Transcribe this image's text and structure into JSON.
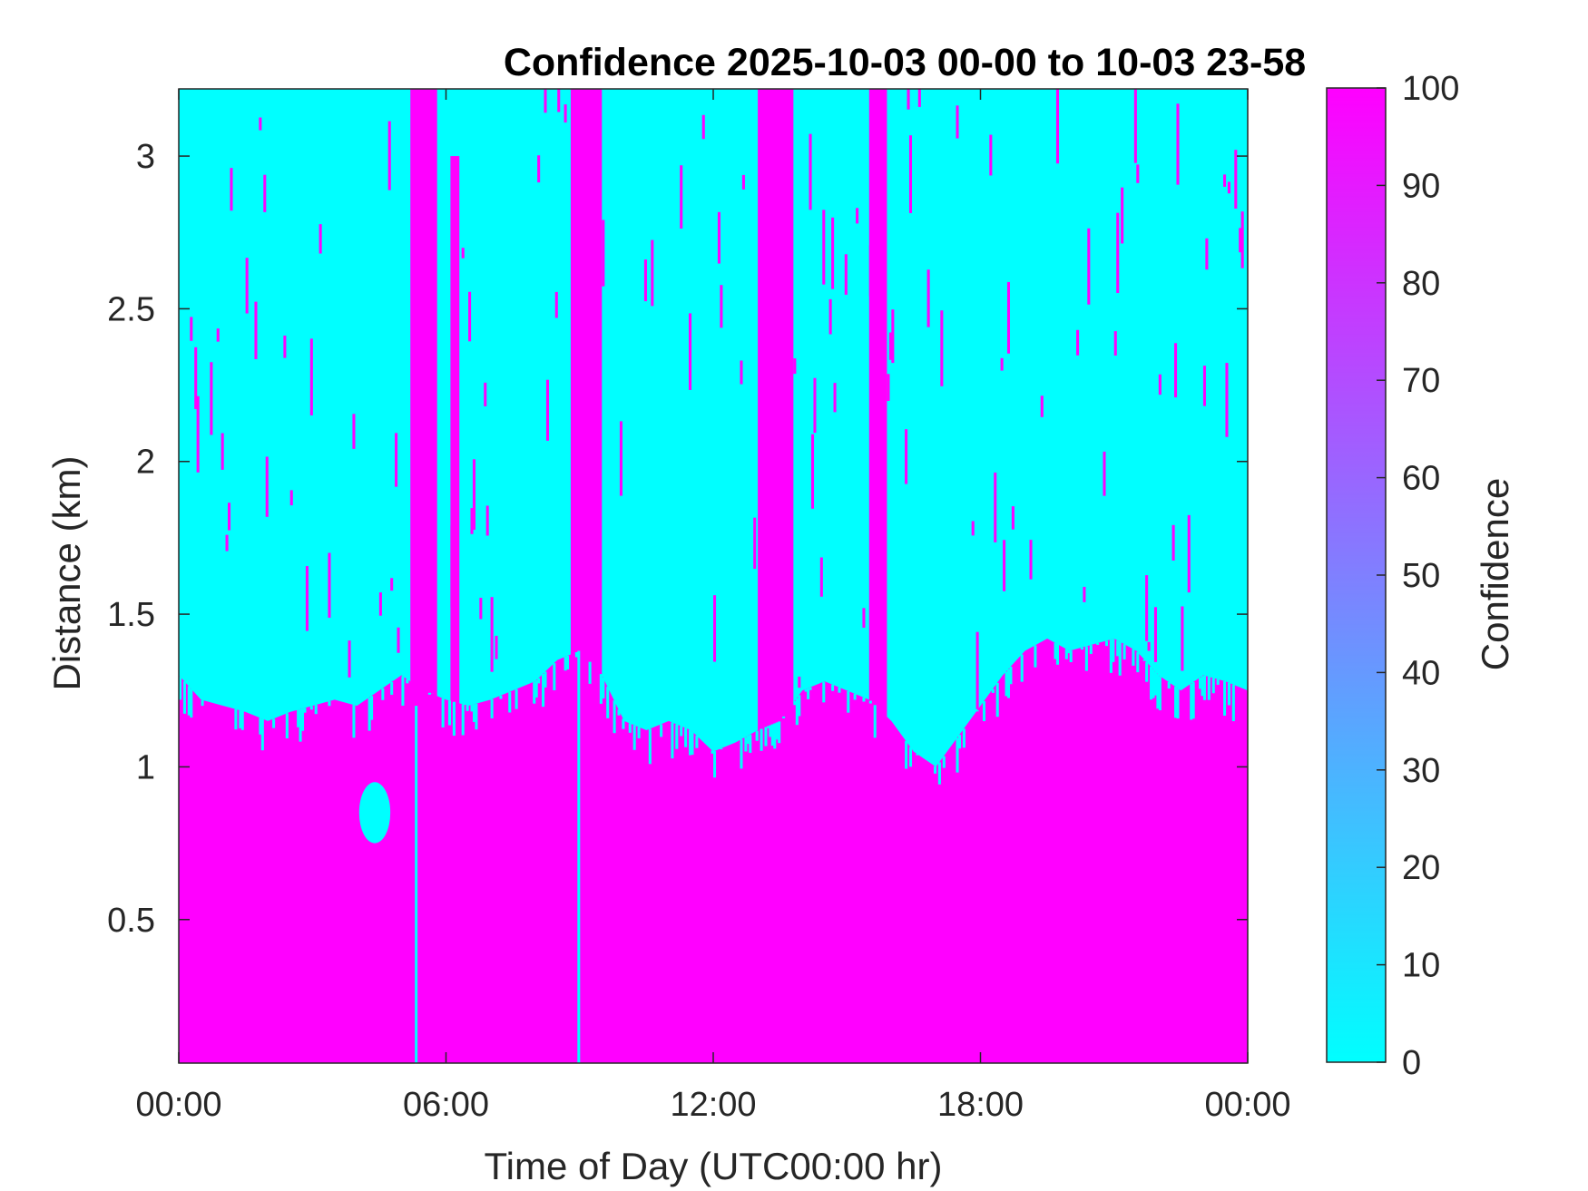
{
  "chart_data": {
    "type": "heatmap",
    "title": "Confidence 2025-10-03 00-00 to 10-03 23-58",
    "xlabel": "Time of Day (UTC00:00 hr)",
    "ylabel": "Distance (km)",
    "xlim": [
      0,
      24
    ],
    "ylim": [
      0.03,
      3.22
    ],
    "x_tick_labels": [
      "00:00",
      "06:00",
      "12:00",
      "18:00",
      "00:00"
    ],
    "x_ticks": [
      0,
      6,
      12,
      18,
      24
    ],
    "y_ticks": [
      0.5,
      1,
      1.5,
      2,
      2.5,
      3
    ],
    "y_tick_labels": [
      "0.5",
      "1",
      "1.5",
      "2",
      "2.5",
      "3"
    ],
    "colorbar": {
      "label": "Confidence",
      "range": [
        0,
        100
      ],
      "ticks": [
        0,
        10,
        20,
        30,
        40,
        50,
        60,
        70,
        80,
        90,
        100
      ],
      "tick_labels": [
        "0",
        "10",
        "20",
        "30",
        "40",
        "50",
        "60",
        "70",
        "80",
        "90",
        "100"
      ],
      "color_low": "#00ffff",
      "color_high": "#ff00ff"
    },
    "confidence_boundary": {
      "description_hours": [
        0,
        0.5,
        1,
        1.5,
        2,
        2.5,
        3,
        3.5,
        4,
        4.5,
        5,
        5.5,
        6,
        6.5,
        7,
        7.5,
        8,
        8.5,
        9,
        9.5,
        10,
        10.5,
        11,
        11.5,
        12,
        12.5,
        13,
        13.5,
        14,
        14.5,
        15,
        15.5,
        16,
        16.5,
        17,
        17.5,
        18,
        18.5,
        19,
        19.5,
        20,
        20.5,
        21,
        21.5,
        22,
        22.5,
        23,
        23.5,
        24
      ],
      "height_km": [
        1.3,
        1.22,
        1.2,
        1.18,
        1.15,
        1.18,
        1.2,
        1.22,
        1.2,
        1.25,
        1.3,
        1.25,
        1.22,
        1.2,
        1.22,
        1.25,
        1.28,
        1.35,
        1.38,
        1.3,
        1.15,
        1.12,
        1.15,
        1.12,
        1.05,
        1.08,
        1.12,
        1.15,
        1.25,
        1.28,
        1.25,
        1.22,
        1.15,
        1.05,
        1.0,
        1.1,
        1.2,
        1.3,
        1.38,
        1.42,
        1.38,
        1.4,
        1.42,
        1.38,
        1.3,
        1.25,
        1.3,
        1.28,
        1.25
      ]
    },
    "plume_columns": [
      {
        "x_from": 5.2,
        "x_to": 5.8,
        "y_top_km": 3.22
      },
      {
        "x_from": 6.1,
        "x_to": 6.3,
        "y_top_km": 3.0
      },
      {
        "x_from": 8.8,
        "x_to": 9.5,
        "y_top_km": 3.22
      },
      {
        "x_from": 13.0,
        "x_to": 13.8,
        "y_top_km": 3.22
      },
      {
        "x_from": 15.5,
        "x_to": 15.9,
        "y_top_km": 3.22
      }
    ],
    "cyan_pockets": [
      {
        "x_center": 4.4,
        "y_center_km": 0.85,
        "x_halfwidth": 0.35,
        "y_halfheight_km": 0.1
      }
    ],
    "cyan_gaps": [
      {
        "x_from": 5.3,
        "x_to": 5.35,
        "y_from_km": 0.03,
        "y_to_km": 1.2
      },
      {
        "x_from": 8.95,
        "x_to": 9.0,
        "y_from_km": 0.03,
        "y_to_km": 1.38
      }
    ]
  }
}
